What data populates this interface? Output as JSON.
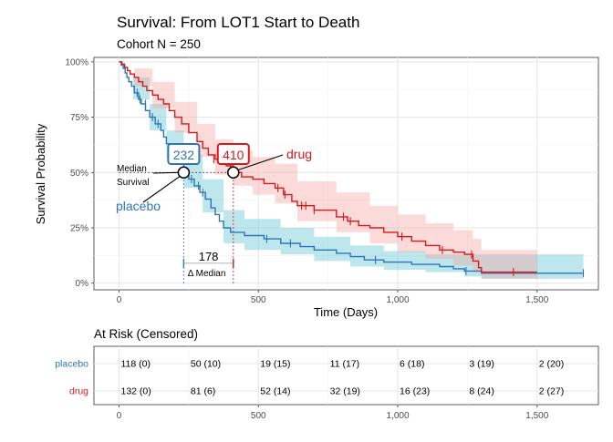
{
  "header": {
    "title": "Survival: From LOT1 Start to Death",
    "subtitle": "Cohort N = 250"
  },
  "chart_data": {
    "type": "line",
    "subtype": "kaplan-meier",
    "xlabel": "Time (Days)",
    "ylabel": "Survival Probability",
    "xlim": [
      -90,
      1720
    ],
    "ylim": [
      -0.03,
      1.02
    ],
    "x_ticks": [
      0,
      500,
      1000,
      1500
    ],
    "x_tick_labels": [
      "0",
      "500",
      "1,000",
      "1,500"
    ],
    "y_ticks": [
      0,
      0.25,
      0.5,
      0.75,
      1.0
    ],
    "y_tick_labels": [
      "0%",
      "25%",
      "50%",
      "75%",
      "100%"
    ],
    "grid": true,
    "series": [
      {
        "name": "placebo",
        "color": "#2e75b6",
        "band_color": "#5bc4d1",
        "steps": [
          [
            0,
            1.0
          ],
          [
            8,
            0.985
          ],
          [
            15,
            0.97
          ],
          [
            22,
            0.95
          ],
          [
            28,
            0.93
          ],
          [
            35,
            0.91
          ],
          [
            45,
            0.89
          ],
          [
            55,
            0.86
          ],
          [
            70,
            0.83
          ],
          [
            80,
            0.81
          ],
          [
            95,
            0.78
          ],
          [
            110,
            0.75
          ],
          [
            130,
            0.72
          ],
          [
            150,
            0.69
          ],
          [
            160,
            0.66
          ],
          [
            170,
            0.63
          ],
          [
            185,
            0.6
          ],
          [
            200,
            0.57
          ],
          [
            215,
            0.54
          ],
          [
            232,
            0.5
          ],
          [
            250,
            0.47
          ],
          [
            270,
            0.44
          ],
          [
            290,
            0.41
          ],
          [
            310,
            0.38
          ],
          [
            330,
            0.34
          ],
          [
            345,
            0.31
          ],
          [
            360,
            0.28
          ],
          [
            375,
            0.25
          ],
          [
            400,
            0.23
          ],
          [
            450,
            0.215
          ],
          [
            520,
            0.2
          ],
          [
            580,
            0.18
          ],
          [
            650,
            0.165
          ],
          [
            700,
            0.15
          ],
          [
            780,
            0.135
          ],
          [
            830,
            0.12
          ],
          [
            880,
            0.105
          ],
          [
            950,
            0.095
          ],
          [
            1050,
            0.085
          ],
          [
            1150,
            0.075
          ],
          [
            1200,
            0.065
          ],
          [
            1240,
            0.055
          ],
          [
            1300,
            0.045
          ],
          [
            1666,
            0.045
          ]
        ],
        "band": [
          [
            0,
            1.0,
            1.0
          ],
          [
            50,
            0.93,
            0.83
          ],
          [
            110,
            0.81,
            0.69
          ],
          [
            170,
            0.69,
            0.56
          ],
          [
            232,
            0.58,
            0.43
          ],
          [
            300,
            0.47,
            0.32
          ],
          [
            375,
            0.33,
            0.18
          ],
          [
            450,
            0.29,
            0.15
          ],
          [
            580,
            0.25,
            0.13
          ],
          [
            700,
            0.21,
            0.1
          ],
          [
            830,
            0.17,
            0.075
          ],
          [
            950,
            0.145,
            0.06
          ],
          [
            1100,
            0.13,
            0.05
          ],
          [
            1240,
            0.13,
            0.03
          ],
          [
            1300,
            0.13,
            0.02
          ],
          [
            1666,
            0.13,
            0.02
          ]
        ],
        "censor": [
          {
            "x": 65,
            "y": 0.86
          },
          {
            "x": 75,
            "y": 0.83
          },
          {
            "x": 95,
            "y": 0.81
          },
          {
            "x": 120,
            "y": 0.75
          },
          {
            "x": 140,
            "y": 0.72
          },
          {
            "x": 260,
            "y": 0.47
          },
          {
            "x": 285,
            "y": 0.44
          },
          {
            "x": 300,
            "y": 0.41
          },
          {
            "x": 530,
            "y": 0.2
          },
          {
            "x": 615,
            "y": 0.18
          },
          {
            "x": 920,
            "y": 0.105
          },
          {
            "x": 1245,
            "y": 0.055
          },
          {
            "x": 1666,
            "y": 0.045
          }
        ],
        "median": {
          "label": "232",
          "x": 232,
          "y": 0.5
        },
        "legend_label": "placebo",
        "legend_position": "left-middle"
      },
      {
        "name": "drug",
        "color": "#d7191c",
        "band_color": "#f4a5a2",
        "steps": [
          [
            0,
            1.0
          ],
          [
            10,
            0.99
          ],
          [
            20,
            0.975
          ],
          [
            30,
            0.96
          ],
          [
            40,
            0.945
          ],
          [
            55,
            0.93
          ],
          [
            70,
            0.91
          ],
          [
            85,
            0.89
          ],
          [
            100,
            0.87
          ],
          [
            120,
            0.85
          ],
          [
            140,
            0.83
          ],
          [
            160,
            0.81
          ],
          [
            180,
            0.78
          ],
          [
            200,
            0.75
          ],
          [
            225,
            0.72
          ],
          [
            250,
            0.68
          ],
          [
            280,
            0.64
          ],
          [
            300,
            0.61
          ],
          [
            320,
            0.58
          ],
          [
            345,
            0.56
          ],
          [
            370,
            0.54
          ],
          [
            385,
            0.53
          ],
          [
            410,
            0.5
          ],
          [
            440,
            0.48
          ],
          [
            480,
            0.47
          ],
          [
            520,
            0.45
          ],
          [
            560,
            0.43
          ],
          [
            590,
            0.4
          ],
          [
            620,
            0.37
          ],
          [
            640,
            0.35
          ],
          [
            700,
            0.33
          ],
          [
            780,
            0.3
          ],
          [
            820,
            0.28
          ],
          [
            860,
            0.26
          ],
          [
            900,
            0.25
          ],
          [
            950,
            0.23
          ],
          [
            1000,
            0.21
          ],
          [
            1050,
            0.19
          ],
          [
            1100,
            0.17
          ],
          [
            1150,
            0.15
          ],
          [
            1200,
            0.14
          ],
          [
            1240,
            0.13
          ],
          [
            1270,
            0.1
          ],
          [
            1290,
            0.07
          ],
          [
            1300,
            0.05
          ],
          [
            1500,
            0.05
          ]
        ],
        "band": [
          [
            0,
            1.0,
            1.0
          ],
          [
            55,
            0.97,
            0.89
          ],
          [
            120,
            0.91,
            0.79
          ],
          [
            200,
            0.82,
            0.68
          ],
          [
            280,
            0.72,
            0.57
          ],
          [
            345,
            0.65,
            0.49
          ],
          [
            410,
            0.6,
            0.44
          ],
          [
            480,
            0.57,
            0.4
          ],
          [
            560,
            0.54,
            0.36
          ],
          [
            640,
            0.46,
            0.28
          ],
          [
            780,
            0.41,
            0.23
          ],
          [
            900,
            0.35,
            0.18
          ],
          [
            1000,
            0.31,
            0.14
          ],
          [
            1100,
            0.27,
            0.11
          ],
          [
            1200,
            0.24,
            0.08
          ],
          [
            1270,
            0.2,
            0.05
          ],
          [
            1300,
            0.15,
            0.02
          ],
          [
            1500,
            0.14,
            0.02
          ]
        ],
        "censor": [
          {
            "x": 340,
            "y": 0.56
          },
          {
            "x": 360,
            "y": 0.56
          },
          {
            "x": 400,
            "y": 0.53
          },
          {
            "x": 570,
            "y": 0.43
          },
          {
            "x": 595,
            "y": 0.4
          },
          {
            "x": 655,
            "y": 0.35
          },
          {
            "x": 670,
            "y": 0.35
          },
          {
            "x": 700,
            "y": 0.33
          },
          {
            "x": 805,
            "y": 0.3
          },
          {
            "x": 830,
            "y": 0.28
          },
          {
            "x": 1015,
            "y": 0.21
          },
          {
            "x": 1160,
            "y": 0.15
          },
          {
            "x": 1265,
            "y": 0.13
          },
          {
            "x": 1415,
            "y": 0.05
          }
        ],
        "median": {
          "label": "410",
          "x": 410,
          "y": 0.5
        },
        "legend_label": "drug",
        "legend_position": "upper-middle"
      }
    ],
    "annotations": {
      "median_survival_label": [
        "Median",
        "Survival"
      ],
      "delta_median_value": "178",
      "delta_median_label": "Δ Median"
    }
  },
  "risk_table": {
    "title": "At Risk (Censored)",
    "x_ticks": [
      0,
      500,
      1000,
      1500
    ],
    "x_tick_labels": [
      "0",
      "500",
      "1,000",
      "1,500"
    ],
    "times": [
      0,
      250,
      500,
      750,
      1000,
      1250,
      1500
    ],
    "rows": [
      {
        "label": "placebo",
        "color": "#2e75b6",
        "cells": [
          "118 (0)",
          "50 (10)",
          "19 (15)",
          "11 (17)",
          "6 (18)",
          "3 (19)",
          "2 (20)"
        ]
      },
      {
        "label": "drug",
        "color": "#d7191c",
        "cells": [
          "132 (0)",
          "81 (6)",
          "52 (14)",
          "32 (19)",
          "16 (23)",
          "8 (24)",
          "2 (27)"
        ]
      }
    ]
  }
}
